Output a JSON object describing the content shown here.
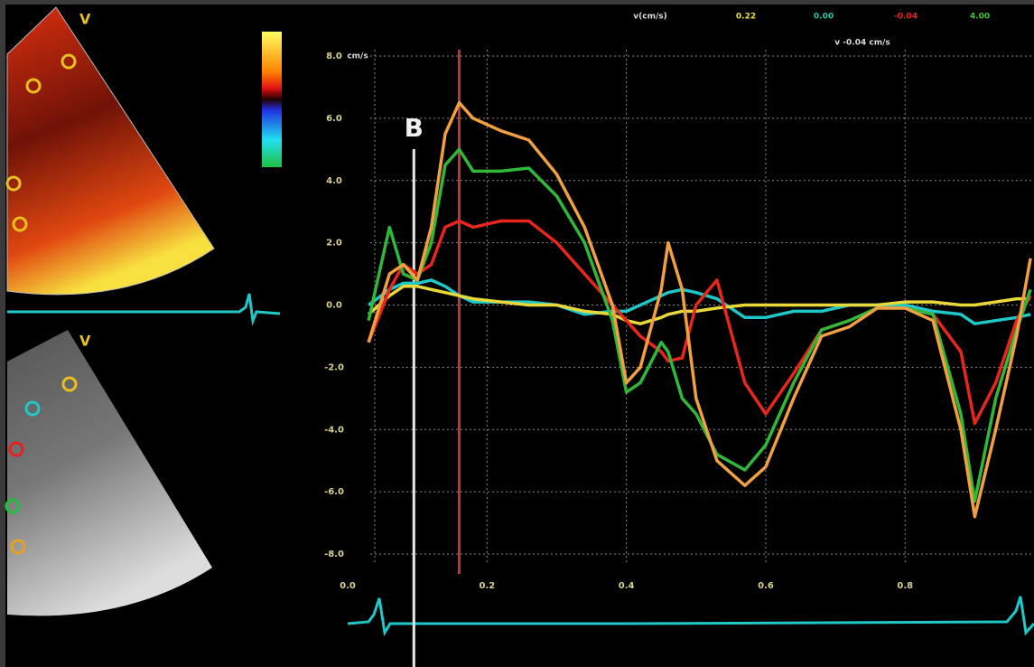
{
  "chart_data": {
    "type": "line",
    "y_label": "cm/s",
    "annotation": "v -0.04 cm/s",
    "header": {
      "label": "v(cm/s)",
      "values": [
        {
          "text": "0.22",
          "color": "#e8e23a"
        },
        {
          "text": "0.00",
          "color": "#1fc8a8"
        },
        {
          "text": "-0.04",
          "color": "#e8261e"
        },
        {
          "text": "4.00",
          "color": "#3fc43a"
        }
      ]
    },
    "panel_labels": [
      "V",
      "V"
    ],
    "marker": {
      "label": "B",
      "x": 0.095
    },
    "cursor_x": 0.16,
    "x": [
      0.03,
      0.06,
      0.08,
      0.1,
      0.12,
      0.14,
      0.16,
      0.18,
      0.22,
      0.26,
      0.3,
      0.34,
      0.38,
      0.4,
      0.42,
      0.45,
      0.46,
      0.48,
      0.5,
      0.53,
      0.57,
      0.6,
      0.64,
      0.68,
      0.72,
      0.76,
      0.8,
      0.84,
      0.88,
      0.9,
      0.93,
      0.96,
      0.98
    ],
    "series": [
      {
        "color": "#1fc8c8",
        "values": [
          0.0,
          0.5,
          0.7,
          0.7,
          0.8,
          0.6,
          0.3,
          0.1,
          0.1,
          0.1,
          0.0,
          -0.3,
          -0.2,
          -0.2,
          0.0,
          0.3,
          0.4,
          0.5,
          0.4,
          0.2,
          -0.4,
          -0.4,
          -0.2,
          -0.2,
          0.0,
          0.0,
          0.0,
          -0.2,
          -0.3,
          -0.6,
          -0.5,
          -0.4,
          -0.3
        ]
      },
      {
        "color": "#e8d83a",
        "values": [
          -0.3,
          0.3,
          0.6,
          0.6,
          0.5,
          0.4,
          0.3,
          0.2,
          0.1,
          0.0,
          0.0,
          -0.2,
          -0.3,
          -0.5,
          -0.6,
          -0.4,
          -0.3,
          -0.2,
          -0.2,
          -0.1,
          0.0,
          0.0,
          0.0,
          0.0,
          0.0,
          0.0,
          0.1,
          0.1,
          0.0,
          0.0,
          0.1,
          0.2,
          0.2
        ]
      },
      {
        "color": "#e8261e",
        "values": [
          -1.2,
          0.5,
          1.3,
          1.0,
          1.3,
          2.5,
          2.7,
          2.5,
          2.7,
          2.7,
          2.0,
          1.0,
          0.0,
          -0.5,
          -1.0,
          -1.5,
          -1.8,
          -1.7,
          0.0,
          0.8,
          -2.5,
          -3.5,
          -2.2,
          -0.8,
          -0.5,
          -0.1,
          -0.1,
          -0.3,
          -1.5,
          -3.8,
          -2.5,
          -0.5,
          0.3
        ]
      },
      {
        "color": "#2fb83a",
        "values": [
          -0.5,
          2.5,
          1.0,
          0.8,
          2.0,
          4.5,
          5.0,
          4.3,
          4.3,
          4.4,
          3.5,
          2.0,
          -0.5,
          -2.8,
          -2.5,
          -1.2,
          -1.5,
          -3.0,
          -3.5,
          -4.8,
          -5.3,
          -4.5,
          -2.5,
          -0.8,
          -0.5,
          -0.1,
          -0.1,
          -0.3,
          -3.5,
          -6.3,
          -3.0,
          -0.8,
          0.5
        ]
      },
      {
        "color": "#f0a040",
        "values": [
          -1.2,
          1.0,
          1.3,
          0.8,
          2.5,
          5.5,
          6.5,
          6.0,
          5.6,
          5.3,
          4.2,
          2.5,
          0.0,
          -2.5,
          -2.0,
          0.5,
          2.0,
          0.5,
          -3.0,
          -5.0,
          -5.8,
          -5.2,
          -3.0,
          -1.0,
          -0.7,
          -0.1,
          -0.1,
          -0.5,
          -4.0,
          -6.8,
          -4.0,
          -1.0,
          1.5
        ]
      }
    ],
    "xlim": [
      0,
      0.985
    ],
    "xticks": [
      {
        "value": 0,
        "label": "0.0"
      },
      0.2,
      0.4,
      0.6,
      0.8
    ],
    "ylim": [
      -8,
      8
    ],
    "yticks": [
      {
        "value": 8,
        "label": "8.0"
      },
      {
        "value": 6,
        "label": "6.0"
      },
      {
        "value": 4,
        "label": "4.0"
      },
      {
        "value": 2,
        "label": "2.0"
      },
      {
        "value": 0,
        "label": "0.0"
      },
      {
        "value": -2,
        "label": "-2.0"
      },
      {
        "value": -4,
        "label": "-4.0"
      },
      {
        "value": -6,
        "label": "-6.0"
      },
      {
        "value": -8,
        "label": "-8.0"
      }
    ],
    "grid": true
  }
}
